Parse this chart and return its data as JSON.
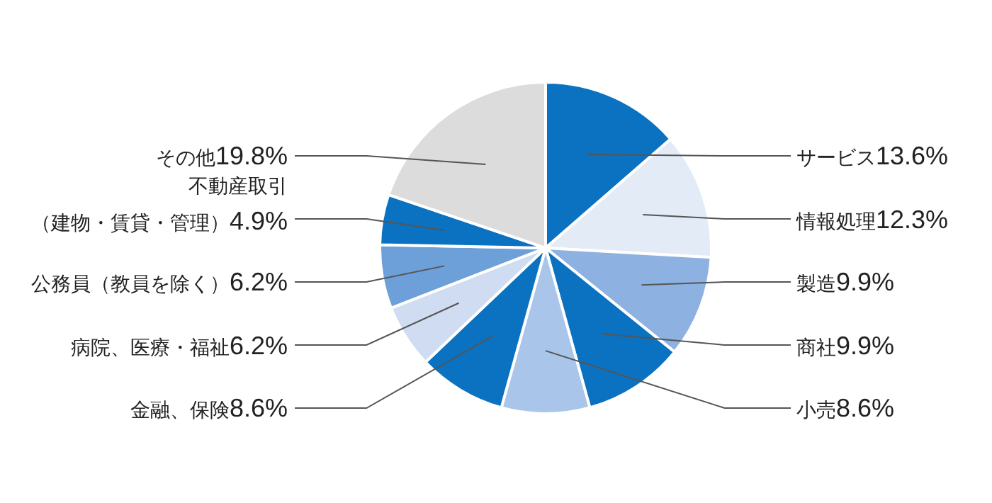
{
  "chart_data": {
    "type": "pie",
    "categories": [
      "サービス",
      "情報処理",
      "製造",
      "商社",
      "小売",
      "金融、保険",
      "病院、医療・福祉",
      "公務員（教員を除く）",
      "不動産取引（建物・賃貸・管理）",
      "その他"
    ],
    "values": [
      13.6,
      12.3,
      9.9,
      9.9,
      8.6,
      8.6,
      6.2,
      6.2,
      4.9,
      19.8
    ],
    "value_labels": [
      "13.6%",
      "12.3%",
      "9.9%",
      "9.9%",
      "8.6%",
      "8.6%",
      "6.2%",
      "6.2%",
      "4.9%",
      "19.8%"
    ],
    "colors": [
      "#0a72c0",
      "#e3ebf7",
      "#8db1e0",
      "#0a72c0",
      "#aac5ea",
      "#0a72c0",
      "#cfdcf1",
      "#6d9fd9",
      "#0a72c0",
      "#dcdcdc"
    ]
  }
}
